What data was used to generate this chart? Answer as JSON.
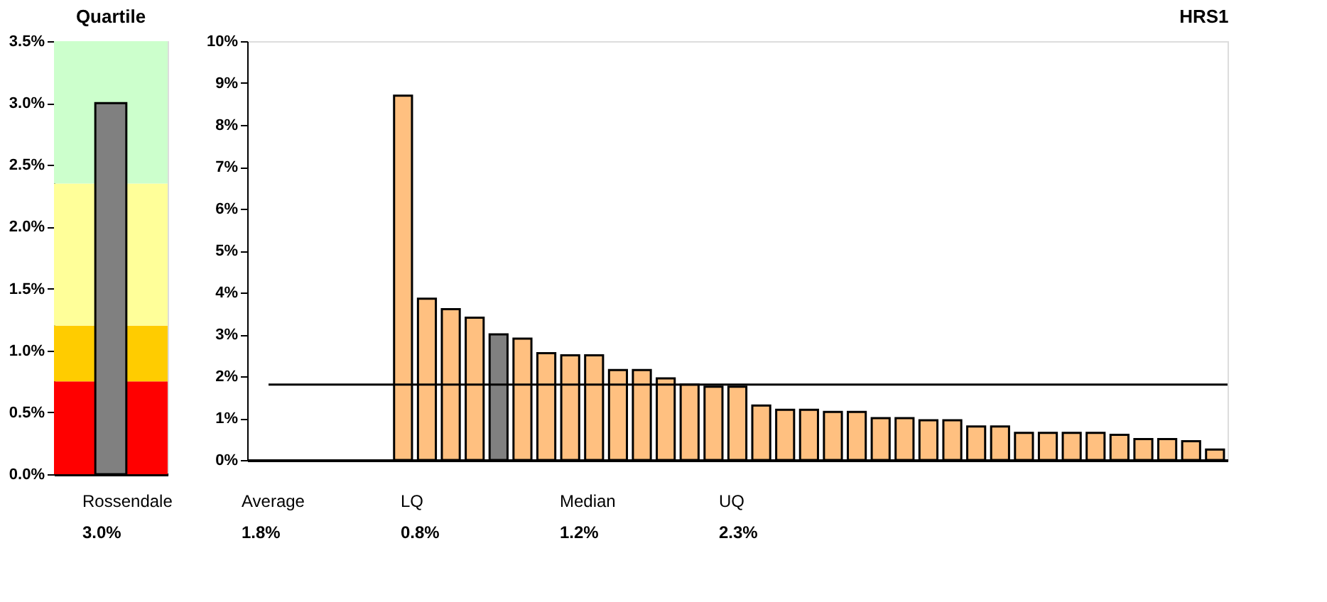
{
  "chart_data": [
    {
      "type": "bar",
      "title": "Quartile",
      "categories": [
        null
      ],
      "series": [
        {
          "color": "#808080",
          "values": [
            3.0
          ]
        }
      ],
      "ylim": [
        0,
        3.5
      ],
      "yticks": [
        {
          "value": 0,
          "label": "0.0%"
        },
        {
          "value": 0.5,
          "label": "0.5%"
        },
        {
          "value": 1,
          "label": "1.0%"
        },
        {
          "value": 1.5,
          "label": "1.5%"
        },
        {
          "value": 2,
          "label": "2.0%"
        },
        {
          "value": 2.5,
          "label": "2.5%"
        },
        {
          "value": 3,
          "label": "3.0%"
        },
        {
          "value": 3.5,
          "label": "3.5%"
        }
      ],
      "bands": [
        {
          "axis": "y",
          "from": 0,
          "to": 0.75,
          "color": "#ff0000"
        },
        {
          "axis": "y",
          "from": 0.75,
          "to": 1.2,
          "color": "#ffcc00"
        },
        {
          "axis": "y",
          "from": 1.2,
          "to": 2.35,
          "color": "#ffff99"
        },
        {
          "axis": "y",
          "from": 2.35,
          "to": 3.5,
          "color": "#ccffcc"
        }
      ],
      "grid": false,
      "tick_labels": "y"
    },
    {
      "type": "bar",
      "title": "HRS1",
      "categories": [
        null,
        null,
        null,
        null,
        null,
        null,
        null,
        null,
        null,
        null,
        null,
        null,
        null,
        null,
        null,
        null,
        null,
        null,
        null,
        null,
        null,
        null,
        null,
        null,
        null,
        null,
        null,
        null,
        null,
        null,
        null,
        null,
        null,
        null,
        null,
        null,
        null,
        null,
        null,
        null,
        null
      ],
      "values": [
        null,
        null,
        null,
        null,
        null,
        null,
        8.7,
        3.85,
        3.6,
        3.4,
        3.0,
        2.9,
        2.55,
        2.5,
        2.5,
        2.15,
        2.15,
        1.95,
        1.8,
        1.75,
        1.75,
        1.3,
        1.2,
        1.2,
        1.15,
        1.15,
        1.0,
        1.0,
        0.95,
        0.95,
        0.8,
        0.8,
        0.65,
        0.65,
        0.65,
        0.65,
        0.6,
        0.5,
        0.5,
        0.45,
        0.25
      ],
      "colors": [
        "#ffc080",
        "#ffc080",
        "#ffc080",
        "#ffc080",
        "#ffc080",
        "#ffc080",
        "#ffc080",
        "#ffc080",
        "#ffc080",
        "#ffc080",
        "#808080",
        "#ffc080",
        "#ffc080",
        "#ffc080",
        "#ffc080",
        "#ffc080",
        "#ffc080",
        "#ffc080",
        "#ffc080",
        "#ffc080",
        "#ffc080",
        "#ffc080",
        "#ffc080",
        "#ffc080",
        "#ffc080",
        "#ffc080",
        "#ffc080",
        "#ffc080",
        "#ffc080",
        "#ffc080",
        "#ffc080",
        "#ffc080",
        "#ffc080",
        "#ffc080",
        "#ffc080",
        "#ffc080",
        "#ffc080",
        "#ffc080",
        "#ffc080",
        "#ffc080",
        "#ffc080"
      ],
      "ylim": [
        0,
        10
      ],
      "yticks": [
        {
          "value": 0,
          "label": "0%"
        },
        {
          "value": 1,
          "label": "1%"
        },
        {
          "value": 2,
          "label": "2%"
        },
        {
          "value": 3,
          "label": "3%"
        },
        {
          "value": 4,
          "label": "4%"
        },
        {
          "value": 5,
          "label": "5%"
        },
        {
          "value": 6,
          "label": "6%"
        },
        {
          "value": 7,
          "label": "7%"
        },
        {
          "value": 8,
          "label": "8%"
        },
        {
          "value": 9,
          "label": "9%"
        },
        {
          "value": 10,
          "label": "10%"
        }
      ],
      "ref_lines": [
        {
          "axis": "y",
          "value": 1.8,
          "color": "#000000"
        }
      ],
      "annotations": [
        "Rossendale",
        "Average",
        "LQ",
        "Median",
        "UQ",
        "3.0%",
        "1.8%",
        "0.8%",
        "1.2%",
        "2.3%"
      ],
      "grid": false,
      "tick_labels": "y"
    }
  ]
}
